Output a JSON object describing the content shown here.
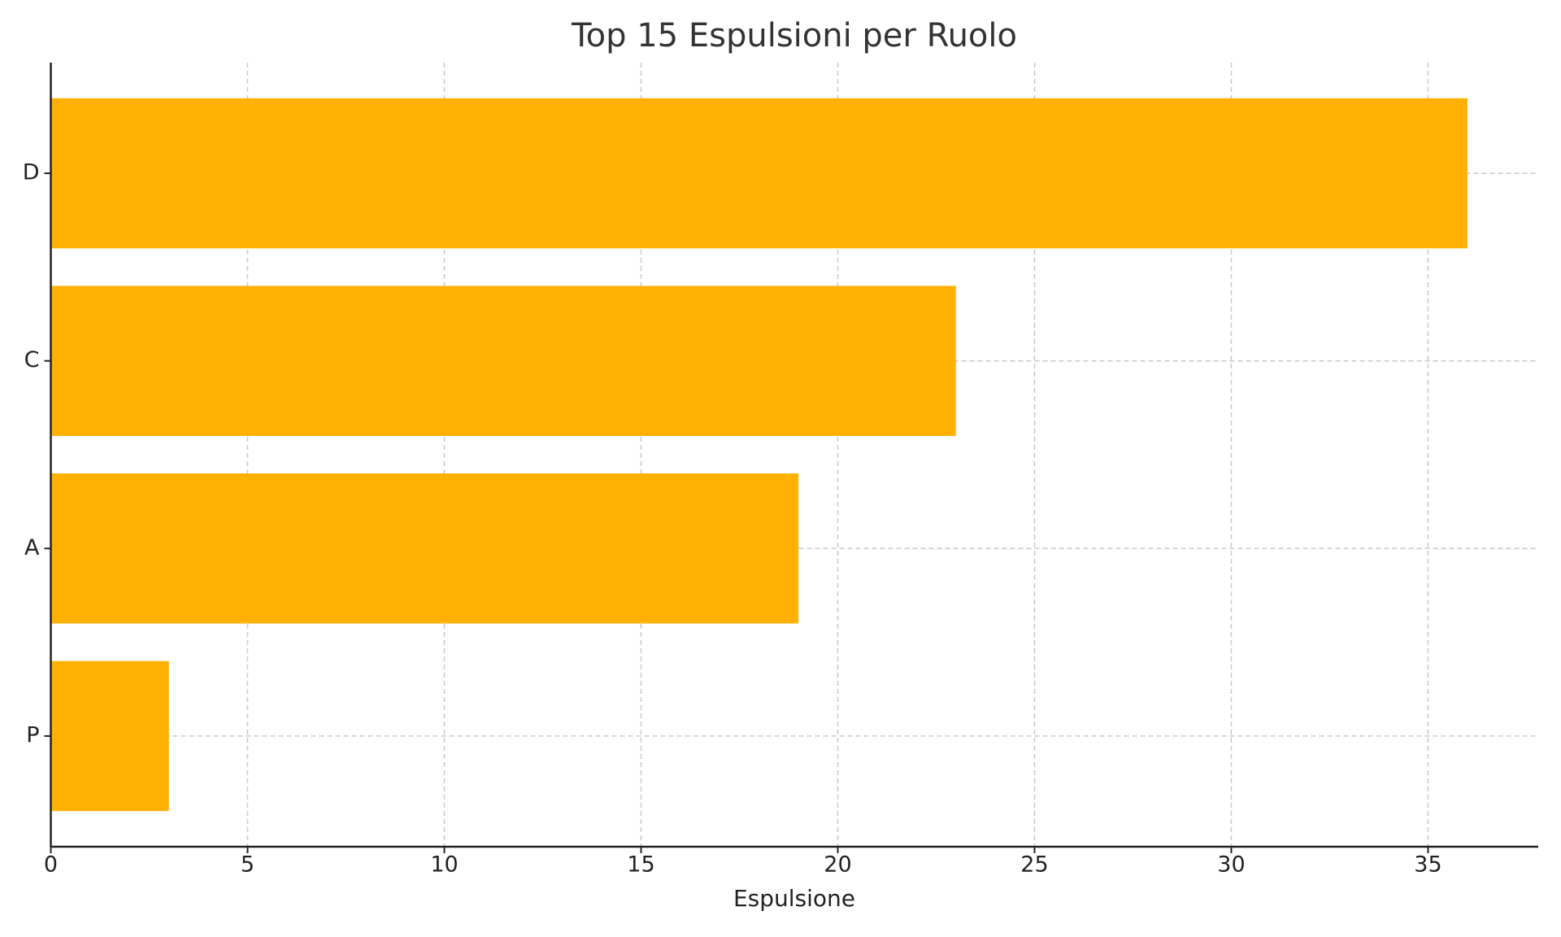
{
  "chart_data": {
    "type": "barh",
    "title": "Top 15 Espulsioni per Ruolo",
    "x_label": "Espulsione",
    "categories": [
      "D",
      "C",
      "A",
      "P"
    ],
    "values": [
      36,
      23,
      19,
      3
    ],
    "color": "#ffb000",
    "xlim": [
      0,
      37.8
    ],
    "xticks": [
      0,
      5,
      10,
      15,
      20,
      25,
      30,
      35
    ],
    "grid": true
  }
}
